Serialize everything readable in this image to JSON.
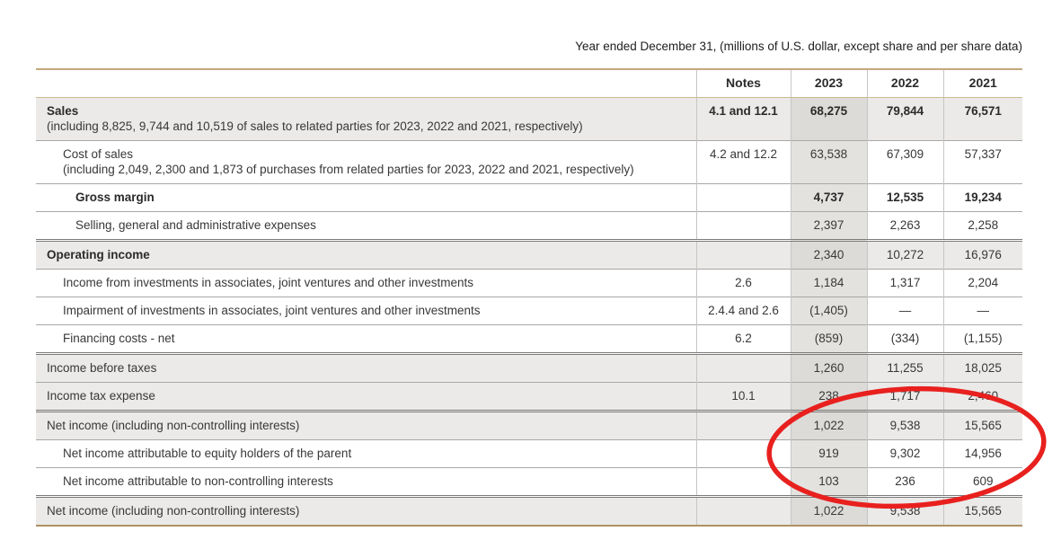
{
  "title": "Year ended December 31, (millions of U.S. dollar, except share and per share data)",
  "table": {
    "header": {
      "notes_label": "Notes",
      "years": [
        "2023",
        "2022",
        "2021"
      ]
    },
    "rows": [
      {
        "label": "Sales",
        "sub": "(including 8,825, 9,744 and 10,519 of sales to related parties for 2023, 2022 and 2021, respectively)",
        "notes": "4.1 and 12.1",
        "values": [
          "68,275",
          "79,844",
          "76,571"
        ],
        "indent": 0,
        "shaded": true,
        "bold_label": true,
        "bold_note": true,
        "bold_values": true,
        "rule": "tan"
      },
      {
        "label": "Cost of sales",
        "sub": "(including 2,049, 2,300 and 1,873 of purchases from related parties for 2023, 2022 and 2021, respectively)",
        "notes": "4.2 and 12.2",
        "values": [
          "63,538",
          "67,309",
          "57,337"
        ],
        "indent": 1,
        "shaded": false,
        "rule": "thin"
      },
      {
        "label": "Gross margin",
        "notes": "",
        "values": [
          "4,737",
          "12,535",
          "19,234"
        ],
        "indent": 2,
        "shaded": false,
        "bold_label": true,
        "bold_values": true,
        "rule": "thin"
      },
      {
        "label": "Selling, general and administrative expenses",
        "notes": "",
        "values": [
          "2,397",
          "2,263",
          "2,258"
        ],
        "indent": 2,
        "shaded": false,
        "rule": "thin"
      },
      {
        "label": "Operating income",
        "notes": "",
        "values": [
          "2,340",
          "10,272",
          "16,976"
        ],
        "indent": 0,
        "shaded": true,
        "bold_label": true,
        "rule": "thick"
      },
      {
        "label": "Income from investments in associates, joint ventures and other investments",
        "notes": "2.6",
        "values": [
          "1,184",
          "1,317",
          "2,204"
        ],
        "indent": 1,
        "shaded": false,
        "rule": "thin"
      },
      {
        "label": "Impairment of investments in associates, joint ventures and other investments",
        "notes": "2.4.4 and 2.6",
        "values": [
          "(1,405)",
          "—",
          "—"
        ],
        "indent": 1,
        "shaded": false,
        "rule": "thin"
      },
      {
        "label": "Financing costs - net",
        "notes": "6.2",
        "values": [
          "(859)",
          "(334)",
          "(1,155)"
        ],
        "indent": 1,
        "shaded": false,
        "rule": "thin"
      },
      {
        "label": "Income before taxes",
        "notes": "",
        "values": [
          "1,260",
          "11,255",
          "18,025"
        ],
        "indent": 0,
        "shaded": true,
        "rule": "thick"
      },
      {
        "label": "Income tax expense",
        "notes": "10.1",
        "values": [
          "238",
          "1,717",
          "2,460"
        ],
        "indent": 0,
        "shaded": true,
        "rule": "thin"
      },
      {
        "label": "Net income (including non-controlling interests)",
        "notes": "",
        "values": [
          "1,022",
          "9,538",
          "15,565"
        ],
        "indent": 0,
        "shaded": true,
        "rule": "thick"
      },
      {
        "label": "Net income attributable to equity holders of the parent",
        "notes": "",
        "values": [
          "919",
          "9,302",
          "14,956"
        ],
        "indent": 1,
        "shaded": false,
        "rule": "thin"
      },
      {
        "label": "Net income attributable to non-controlling interests",
        "notes": "",
        "values": [
          "103",
          "236",
          "609"
        ],
        "indent": 1,
        "shaded": false,
        "rule": "thin"
      },
      {
        "label": "Net income (including non-controlling interests)",
        "notes": "",
        "values": [
          "1,022",
          "9,538",
          "15,565"
        ],
        "indent": 0,
        "shaded": true,
        "rule": "thick"
      }
    ]
  },
  "annotation": {
    "shape": "ellipse",
    "color": "#e8201e",
    "highlights": "net income values for 2023, 2022 and 2021"
  }
}
